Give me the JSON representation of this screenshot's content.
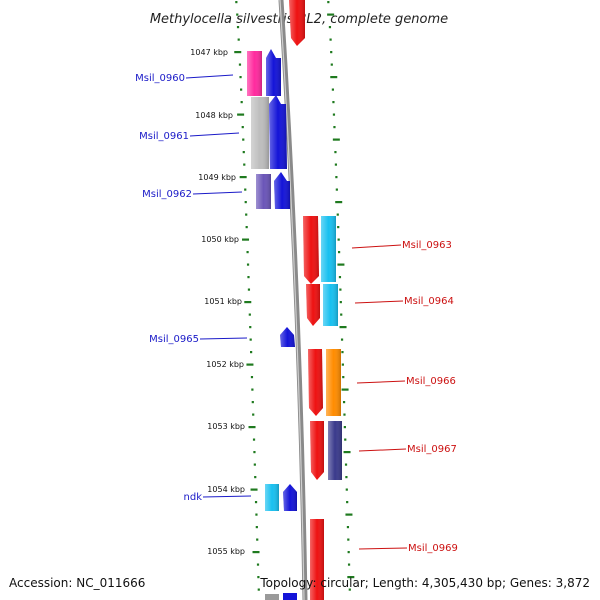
{
  "title": "Methylocella silvestris BL2, complete genome",
  "footer": {
    "accession": "Accession: NC_011666",
    "topology": "Topology: circular; Length: 4,305,430 bp; Genes: 3,872"
  },
  "scale_labels": [
    "1047 kbp",
    "1048 kbp",
    "1049 kbp",
    "1050 kbp",
    "1051 kbp",
    "1052 kbp",
    "1053 kbp",
    "1054 kbp",
    "1055 kbp"
  ],
  "colors": {
    "tick": "#1f7a1f",
    "left_label": "#1a1ac8",
    "right_label": "#cc1111",
    "backbone": "#8a8a8a"
  },
  "left_labels": [
    "Msil_0960",
    "Msil_0961",
    "Msil_0962",
    "Msil_0965",
    "ndk"
  ],
  "right_labels": [
    "Msil_0963",
    "Msil_0964",
    "Msil_0966",
    "Msil_0967",
    "Msil_0969"
  ]
}
